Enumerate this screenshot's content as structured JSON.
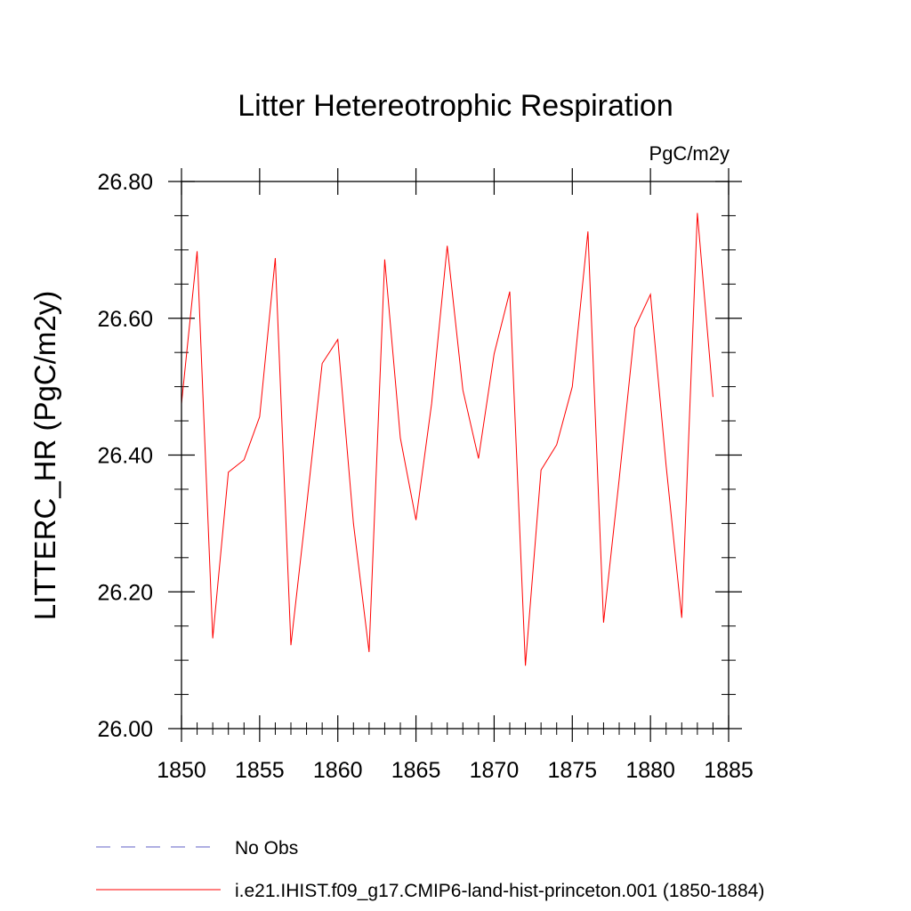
{
  "chart_data": {
    "type": "line",
    "title": "Litter Hetereotrophic Respiration",
    "units_label": "PgC/m2y",
    "ylabel": "LITTERC_HR  (PgC/m2y)",
    "xlabel": "",
    "xlim": [
      1850,
      1885
    ],
    "ylim": [
      26.0,
      26.8
    ],
    "x_ticks": [
      1850,
      1855,
      1860,
      1865,
      1870,
      1875,
      1880,
      1885
    ],
    "y_ticks": [
      26.0,
      26.2,
      26.4,
      26.6,
      26.8
    ],
    "y_tick_labels": [
      "26.00",
      "26.20",
      "26.40",
      "26.60",
      "26.80"
    ],
    "x": [
      1850,
      1851,
      1852,
      1853,
      1854,
      1855,
      1856,
      1857,
      1858,
      1859,
      1860,
      1861,
      1862,
      1863,
      1864,
      1865,
      1866,
      1867,
      1868,
      1869,
      1870,
      1871,
      1872,
      1873,
      1874,
      1875,
      1876,
      1877,
      1878,
      1879,
      1880,
      1881,
      1882,
      1883,
      1884
    ],
    "series": [
      {
        "name": "i.e21.IHIST.f09_g17.CMIP6-land-hist-princeton.001 (1850-1884)",
        "color": "#ff0000",
        "values": [
          26.475,
          26.698,
          26.132,
          26.375,
          26.393,
          26.456,
          26.688,
          26.122,
          26.325,
          26.534,
          26.569,
          26.3,
          26.112,
          26.686,
          26.425,
          26.305,
          26.475,
          26.706,
          26.495,
          26.395,
          26.548,
          26.639,
          26.092,
          26.378,
          26.415,
          26.5,
          26.727,
          26.155,
          26.365,
          26.586,
          26.635,
          26.385,
          26.162,
          26.754,
          26.485
        ]
      }
    ],
    "legend": {
      "placement": "bottom",
      "entries": [
        {
          "label": "No Obs",
          "color": "#7f7fd0",
          "style": "dashed"
        },
        {
          "label": "i.e21.IHIST.f09_g17.CMIP6-land-hist-princeton.001 (1850-1884)",
          "color": "#ff0000",
          "style": "solid"
        }
      ]
    }
  }
}
